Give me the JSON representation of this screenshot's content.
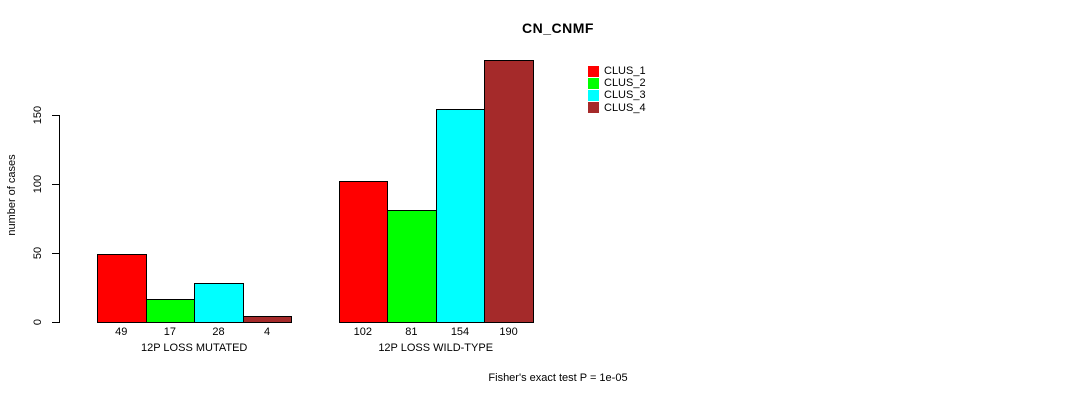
{
  "chart_data": {
    "type": "bar",
    "title": "CN_CNMF",
    "ylabel": "number of cases",
    "xlabel": "",
    "ylim": [
      0,
      190
    ],
    "yticks": [
      0,
      50,
      100,
      150
    ],
    "grid": false,
    "legend_position": "top-right",
    "categories": [
      "12P LOSS MUTATED",
      "12P LOSS WILD-TYPE"
    ],
    "series": [
      {
        "name": "CLUS_1",
        "color": "#FF0000",
        "values": [
          49,
          102
        ]
      },
      {
        "name": "CLUS_2",
        "color": "#00FF00",
        "values": [
          17,
          81
        ]
      },
      {
        "name": "CLUS_3",
        "color": "#00FFFF",
        "values": [
          28,
          154
        ]
      },
      {
        "name": "CLUS_4",
        "color": "#A52A2A",
        "values": [
          4,
          190
        ]
      }
    ],
    "bar_value_labels": [
      [
        49,
        17,
        28,
        4
      ],
      [
        102,
        81,
        154,
        190
      ]
    ],
    "footnote": "Fisher's exact test P = 1e-05"
  },
  "colors": {
    "background": "#FFFFFF",
    "axis": "#000000",
    "text": "#000000"
  }
}
